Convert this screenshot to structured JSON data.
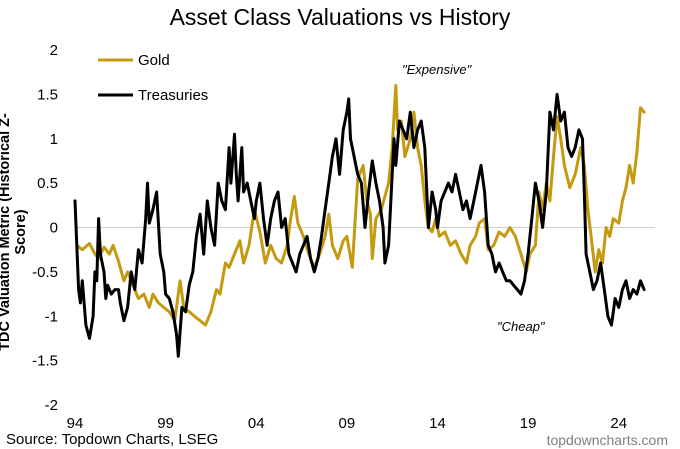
{
  "chart_data": {
    "type": "line",
    "title": "Asset Class Valuations vs History",
    "ylabel": "TDC Valuation Metric (Historical Z-Score)",
    "xlabel": "",
    "ylim": [
      -2,
      2
    ],
    "xlim": [
      1994.0,
      2026.0
    ],
    "yticks": [
      "2",
      "1.5",
      "1",
      "0.5",
      "0",
      "-0.5",
      "-1",
      "-1.5",
      "-2"
    ],
    "xticks": [
      "94",
      "99",
      "04",
      "09",
      "14",
      "19",
      "24"
    ],
    "zero_line": true,
    "grid": false,
    "legend_position": "top-left",
    "annotations": [
      "\"Expensive\"",
      "\"Cheap\""
    ],
    "series": [
      {
        "name": "Gold",
        "color": "#C49A10",
        "points": [
          [
            1994.1,
            -0.2
          ],
          [
            1994.4,
            -0.25
          ],
          [
            1994.8,
            -0.18
          ],
          [
            1995.1,
            -0.3
          ],
          [
            1995.3,
            -0.35
          ],
          [
            1995.6,
            -0.22
          ],
          [
            1995.9,
            -0.3
          ],
          [
            1996.1,
            -0.2
          ],
          [
            1996.4,
            -0.38
          ],
          [
            1996.7,
            -0.6
          ],
          [
            1996.9,
            -0.5
          ],
          [
            1997.2,
            -0.65
          ],
          [
            1997.5,
            -0.8
          ],
          [
            1997.8,
            -0.75
          ],
          [
            1998.1,
            -0.9
          ],
          [
            1998.3,
            -0.75
          ],
          [
            1998.6,
            -0.85
          ],
          [
            1998.9,
            -0.9
          ],
          [
            1999.2,
            -0.95
          ],
          [
            1999.5,
            -1.05
          ],
          [
            1999.8,
            -0.6
          ],
          [
            2000.0,
            -0.9
          ],
          [
            2000.3,
            -0.95
          ],
          [
            2000.6,
            -1.0
          ],
          [
            2000.9,
            -1.05
          ],
          [
            2001.2,
            -1.1
          ],
          [
            2001.5,
            -0.95
          ],
          [
            2001.8,
            -0.7
          ],
          [
            2002.0,
            -0.75
          ],
          [
            2002.3,
            -0.4
          ],
          [
            2002.5,
            -0.45
          ],
          [
            2002.8,
            -0.3
          ],
          [
            2003.1,
            -0.15
          ],
          [
            2003.3,
            -0.4
          ],
          [
            2003.6,
            -0.2
          ],
          [
            2003.9,
            0.2
          ],
          [
            2004.2,
            -0.05
          ],
          [
            2004.5,
            -0.4
          ],
          [
            2004.8,
            -0.2
          ],
          [
            2005.1,
            -0.35
          ],
          [
            2005.4,
            -0.4
          ],
          [
            2005.7,
            -0.2
          ],
          [
            2005.9,
            0.1
          ],
          [
            2006.1,
            0.35
          ],
          [
            2006.3,
            0.05
          ],
          [
            2006.6,
            -0.1
          ],
          [
            2006.9,
            -0.3
          ],
          [
            2007.2,
            -0.45
          ],
          [
            2007.5,
            -0.3
          ],
          [
            2007.8,
            -0.1
          ],
          [
            2008.0,
            0.15
          ],
          [
            2008.2,
            -0.2
          ],
          [
            2008.5,
            -0.35
          ],
          [
            2008.8,
            -0.15
          ],
          [
            2009.0,
            -0.1
          ],
          [
            2009.3,
            -0.45
          ],
          [
            2009.6,
            0.55
          ],
          [
            2009.9,
            0.7
          ],
          [
            2010.1,
            0.3
          ],
          [
            2010.3,
            0.15
          ],
          [
            2010.4,
            -0.35
          ],
          [
            2010.6,
            0.1
          ],
          [
            2010.9,
            0.2
          ],
          [
            2011.1,
            0.35
          ],
          [
            2011.3,
            0.5
          ],
          [
            2011.5,
            0.9
          ],
          [
            2011.7,
            1.6
          ],
          [
            2011.8,
            1.1
          ],
          [
            2012.0,
            1.2
          ],
          [
            2012.2,
            0.8
          ],
          [
            2012.5,
            1.0
          ],
          [
            2012.7,
            1.3
          ],
          [
            2012.9,
            0.9
          ],
          [
            2013.1,
            0.7
          ],
          [
            2013.3,
            0.3
          ],
          [
            2013.5,
            0.0
          ],
          [
            2013.7,
            -0.05
          ],
          [
            2013.9,
            0.1
          ],
          [
            2014.1,
            -0.1
          ],
          [
            2014.4,
            -0.05
          ],
          [
            2014.7,
            -0.2
          ],
          [
            2015.0,
            -0.15
          ],
          [
            2015.3,
            -0.3
          ],
          [
            2015.6,
            -0.4
          ],
          [
            2015.8,
            -0.2
          ],
          [
            2016.1,
            -0.1
          ],
          [
            2016.3,
            0.05
          ],
          [
            2016.6,
            0.1
          ],
          [
            2016.8,
            -0.25
          ],
          [
            2017.1,
            -0.2
          ],
          [
            2017.4,
            -0.05
          ],
          [
            2017.7,
            -0.1
          ],
          [
            2018.0,
            0.0
          ],
          [
            2018.3,
            -0.1
          ],
          [
            2018.6,
            -0.3
          ],
          [
            2018.9,
            -0.5
          ],
          [
            2019.1,
            -0.3
          ],
          [
            2019.4,
            -0.2
          ],
          [
            2019.6,
            0.4
          ],
          [
            2019.8,
            0.2
          ],
          [
            2020.0,
            0.5
          ],
          [
            2020.2,
            0.3
          ],
          [
            2020.4,
            0.8
          ],
          [
            2020.6,
            1.25
          ],
          [
            2020.8,
            1.0
          ],
          [
            2021.0,
            0.7
          ],
          [
            2021.3,
            0.45
          ],
          [
            2021.6,
            0.6
          ],
          [
            2021.9,
            0.9
          ],
          [
            2022.1,
            0.7
          ],
          [
            2022.3,
            0.2
          ],
          [
            2022.5,
            -0.15
          ],
          [
            2022.7,
            -0.5
          ],
          [
            2022.9,
            -0.25
          ],
          [
            2023.1,
            -0.4
          ],
          [
            2023.3,
            0.0
          ],
          [
            2023.5,
            -0.1
          ],
          [
            2023.7,
            0.1
          ],
          [
            2024.0,
            0.05
          ],
          [
            2024.2,
            0.3
          ],
          [
            2024.4,
            0.45
          ],
          [
            2024.6,
            0.7
          ],
          [
            2024.8,
            0.5
          ],
          [
            2025.0,
            0.85
          ],
          [
            2025.2,
            1.35
          ],
          [
            2025.4,
            1.3
          ]
        ]
      },
      {
        "name": "Treasuries",
        "color": "#000000",
        "points": [
          [
            1994.0,
            0.3
          ],
          [
            1994.1,
            -0.2
          ],
          [
            1994.2,
            -0.7
          ],
          [
            1994.3,
            -0.85
          ],
          [
            1994.4,
            -0.6
          ],
          [
            1994.5,
            -0.85
          ],
          [
            1994.6,
            -1.1
          ],
          [
            1994.8,
            -1.25
          ],
          [
            1995.0,
            -1.0
          ],
          [
            1995.1,
            -0.5
          ],
          [
            1995.2,
            -0.6
          ],
          [
            1995.3,
            0.1
          ],
          [
            1995.4,
            -0.3
          ],
          [
            1995.6,
            -0.5
          ],
          [
            1995.7,
            -0.8
          ],
          [
            1995.8,
            -0.65
          ],
          [
            1996.0,
            -0.75
          ],
          [
            1996.2,
            -0.7
          ],
          [
            1996.4,
            -0.7
          ],
          [
            1996.5,
            -0.85
          ],
          [
            1996.7,
            -1.05
          ],
          [
            1996.9,
            -0.9
          ],
          [
            1997.1,
            -0.5
          ],
          [
            1997.3,
            -0.7
          ],
          [
            1997.5,
            -0.25
          ],
          [
            1997.7,
            -0.4
          ],
          [
            1997.9,
            0.1
          ],
          [
            1998.0,
            0.5
          ],
          [
            1998.1,
            0.05
          ],
          [
            1998.3,
            0.2
          ],
          [
            1998.5,
            0.4
          ],
          [
            1998.7,
            -0.3
          ],
          [
            1998.9,
            -0.5
          ],
          [
            1999.0,
            -0.75
          ],
          [
            1999.2,
            -0.8
          ],
          [
            1999.4,
            -0.95
          ],
          [
            1999.6,
            -1.2
          ],
          [
            1999.7,
            -1.45
          ],
          [
            1999.9,
            -0.9
          ],
          [
            2000.1,
            -0.95
          ],
          [
            2000.3,
            -0.65
          ],
          [
            2000.5,
            -0.5
          ],
          [
            2000.7,
            -0.1
          ],
          [
            2000.9,
            0.15
          ],
          [
            2001.1,
            -0.3
          ],
          [
            2001.3,
            0.3
          ],
          [
            2001.5,
            0.0
          ],
          [
            2001.7,
            -0.2
          ],
          [
            2001.9,
            0.5
          ],
          [
            2002.1,
            0.3
          ],
          [
            2002.3,
            0.2
          ],
          [
            2002.5,
            0.9
          ],
          [
            2002.6,
            0.5
          ],
          [
            2002.8,
            1.05
          ],
          [
            2002.9,
            0.6
          ],
          [
            2003.0,
            0.3
          ],
          [
            2003.2,
            0.9
          ],
          [
            2003.3,
            0.4
          ],
          [
            2003.5,
            0.5
          ],
          [
            2003.7,
            0.3
          ],
          [
            2003.9,
            0.1
          ],
          [
            2004.0,
            0.3
          ],
          [
            2004.2,
            0.5
          ],
          [
            2004.4,
            0.1
          ],
          [
            2004.6,
            -0.2
          ],
          [
            2004.8,
            0.1
          ],
          [
            2005.0,
            0.3
          ],
          [
            2005.2,
            0.4
          ],
          [
            2005.4,
            0.0
          ],
          [
            2005.6,
            0.1
          ],
          [
            2005.8,
            -0.3
          ],
          [
            2006.0,
            -0.4
          ],
          [
            2006.2,
            -0.5
          ],
          [
            2006.4,
            -0.3
          ],
          [
            2006.6,
            -0.2
          ],
          [
            2006.8,
            -0.1
          ],
          [
            2007.0,
            -0.35
          ],
          [
            2007.2,
            -0.5
          ],
          [
            2007.4,
            -0.35
          ],
          [
            2007.6,
            -0.1
          ],
          [
            2007.8,
            0.2
          ],
          [
            2008.0,
            0.5
          ],
          [
            2008.2,
            0.8
          ],
          [
            2008.4,
            1.0
          ],
          [
            2008.6,
            0.6
          ],
          [
            2008.8,
            1.1
          ],
          [
            2009.0,
            1.3
          ],
          [
            2009.1,
            1.45
          ],
          [
            2009.2,
            1.0
          ],
          [
            2009.4,
            0.8
          ],
          [
            2009.6,
            0.6
          ],
          [
            2009.8,
            0.5
          ],
          [
            2010.0,
            0.0
          ],
          [
            2010.2,
            0.4
          ],
          [
            2010.4,
            0.75
          ],
          [
            2010.6,
            0.5
          ],
          [
            2010.8,
            0.3
          ],
          [
            2011.0,
            0.0
          ],
          [
            2011.1,
            -0.4
          ],
          [
            2011.3,
            -0.2
          ],
          [
            2011.4,
            0.2
          ],
          [
            2011.5,
            0.6
          ],
          [
            2011.6,
            1.0
          ],
          [
            2011.7,
            0.7
          ],
          [
            2011.9,
            1.2
          ],
          [
            2012.1,
            1.1
          ],
          [
            2012.3,
            1.0
          ],
          [
            2012.5,
            1.3
          ],
          [
            2012.7,
            0.9
          ],
          [
            2012.9,
            1.1
          ],
          [
            2013.1,
            1.2
          ],
          [
            2013.3,
            0.9
          ],
          [
            2013.5,
            0.0
          ],
          [
            2013.7,
            0.4
          ],
          [
            2013.9,
            0.2
          ],
          [
            2014.0,
            0.0
          ],
          [
            2014.2,
            0.3
          ],
          [
            2014.4,
            0.4
          ],
          [
            2014.6,
            0.5
          ],
          [
            2014.8,
            0.4
          ],
          [
            2015.0,
            0.6
          ],
          [
            2015.2,
            0.4
          ],
          [
            2015.4,
            0.2
          ],
          [
            2015.6,
            0.3
          ],
          [
            2015.8,
            0.1
          ],
          [
            2016.0,
            0.3
          ],
          [
            2016.2,
            0.5
          ],
          [
            2016.4,
            0.7
          ],
          [
            2016.6,
            0.4
          ],
          [
            2016.8,
            -0.2
          ],
          [
            2017.0,
            -0.3
          ],
          [
            2017.2,
            -0.5
          ],
          [
            2017.4,
            -0.4
          ],
          [
            2017.6,
            -0.5
          ],
          [
            2017.8,
            -0.6
          ],
          [
            2018.0,
            -0.6
          ],
          [
            2018.2,
            -0.65
          ],
          [
            2018.4,
            -0.7
          ],
          [
            2018.6,
            -0.75
          ],
          [
            2018.8,
            -0.6
          ],
          [
            2019.0,
            -0.3
          ],
          [
            2019.2,
            0.1
          ],
          [
            2019.4,
            0.5
          ],
          [
            2019.6,
            0.3
          ],
          [
            2019.8,
            0.0
          ],
          [
            2020.0,
            0.4
          ],
          [
            2020.2,
            1.3
          ],
          [
            2020.4,
            1.1
          ],
          [
            2020.6,
            1.5
          ],
          [
            2020.8,
            1.2
          ],
          [
            2021.0,
            1.3
          ],
          [
            2021.2,
            0.9
          ],
          [
            2021.4,
            0.8
          ],
          [
            2021.6,
            0.9
          ],
          [
            2021.8,
            1.1
          ],
          [
            2022.0,
            1.0
          ],
          [
            2022.1,
            0.4
          ],
          [
            2022.2,
            -0.3
          ],
          [
            2022.4,
            -0.5
          ],
          [
            2022.6,
            -0.7
          ],
          [
            2022.8,
            -0.6
          ],
          [
            2023.0,
            -0.4
          ],
          [
            2023.2,
            -0.7
          ],
          [
            2023.4,
            -1.0
          ],
          [
            2023.6,
            -1.1
          ],
          [
            2023.8,
            -0.8
          ],
          [
            2024.0,
            -0.9
          ],
          [
            2024.2,
            -0.7
          ],
          [
            2024.4,
            -0.6
          ],
          [
            2024.6,
            -0.8
          ],
          [
            2024.8,
            -0.7
          ],
          [
            2025.0,
            -0.75
          ],
          [
            2025.2,
            -0.6
          ],
          [
            2025.4,
            -0.7
          ]
        ]
      }
    ]
  },
  "source": "Source: Topdown Charts, LSEG",
  "website": "topdowncharts.com"
}
